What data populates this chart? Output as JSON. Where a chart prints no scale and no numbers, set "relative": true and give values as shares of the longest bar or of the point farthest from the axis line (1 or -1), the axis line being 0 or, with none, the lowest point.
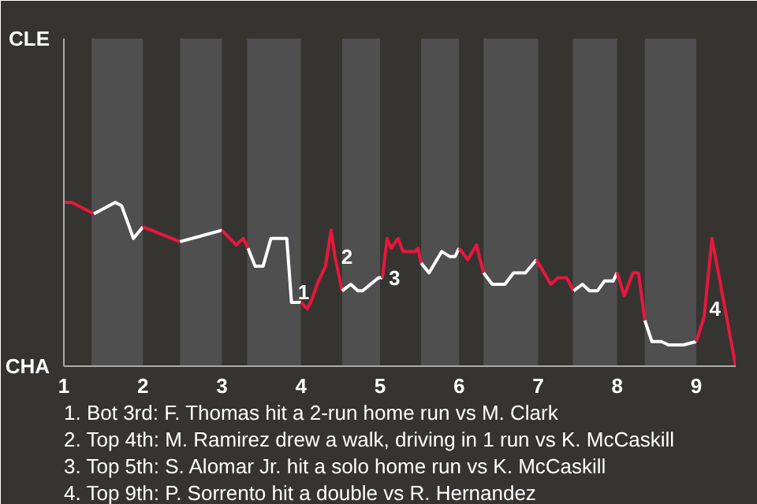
{
  "chart_data": {
    "type": "line",
    "relative": true,
    "xlim": [
      1,
      9.5
    ],
    "xticks": [
      1,
      2,
      3,
      4,
      5,
      6,
      7,
      8,
      9
    ],
    "marker": "none",
    "line_style": "solid",
    "series": [
      {
        "color": "#e8173c",
        "x": [
          1,
          1.1,
          1.38
        ],
        "values": [
          1,
          1,
          0.93
        ]
      },
      {
        "color": "#ffffff",
        "x": [
          1.38,
          1.65,
          1.73,
          1.88,
          2
        ],
        "values": [
          0.93,
          1,
          0.98,
          0.78,
          0.85
        ]
      },
      {
        "color": "#e8173c",
        "x": [
          2,
          2.47
        ],
        "values": [
          0.85,
          0.76
        ]
      },
      {
        "color": "#ffffff",
        "x": [
          2.47,
          3
        ],
        "values": [
          0.76,
          0.83
        ]
      },
      {
        "color": "#e8173c",
        "x": [
          3,
          3.18,
          3.27,
          3.33
        ],
        "values": [
          0.83,
          0.74,
          0.78,
          0.72
        ]
      },
      {
        "color": "#ffffff",
        "x": [
          3.33,
          3.42,
          3.52,
          3.62,
          3.68,
          3.82,
          3.88,
          4
        ],
        "values": [
          0.72,
          0.61,
          0.61,
          0.78,
          0.78,
          0.78,
          0.39,
          0.39
        ]
      },
      {
        "color": "#e8173c",
        "x": [
          4,
          4.08,
          4.14,
          4.22,
          4.31,
          4.38,
          4.43,
          4.52
        ],
        "values": [
          0.39,
          0.35,
          0.41,
          0.52,
          0.61,
          0.83,
          0.67,
          0.46
        ]
      },
      {
        "color": "#ffffff",
        "x": [
          4.52,
          4.63,
          4.72,
          4.78,
          4.88,
          4.98,
          5.03
        ],
        "values": [
          0.46,
          0.5,
          0.46,
          0.46,
          0.5,
          0.54,
          0.54
        ]
      },
      {
        "color": "#e8173c",
        "x": [
          5.03,
          5.09,
          5.14,
          5.23,
          5.29,
          5.45,
          5.48,
          5.52
        ],
        "values": [
          0.54,
          0.78,
          0.72,
          0.78,
          0.7,
          0.7,
          0.72,
          0.63
        ]
      },
      {
        "color": "#ffffff",
        "x": [
          5.52,
          5.62,
          5.78,
          5.88,
          5.95,
          6
        ],
        "values": [
          0.63,
          0.57,
          0.7,
          0.67,
          0.67,
          0.72
        ]
      },
      {
        "color": "#e8173c",
        "x": [
          6,
          6.11,
          6.22,
          6.31
        ],
        "values": [
          0.72,
          0.65,
          0.74,
          0.57
        ]
      },
      {
        "color": "#ffffff",
        "x": [
          6.31,
          6.42,
          6.58,
          6.69,
          6.84,
          6.98
        ],
        "values": [
          0.57,
          0.5,
          0.5,
          0.57,
          0.57,
          0.65
        ]
      },
      {
        "color": "#e8173c",
        "x": [
          6.98,
          7.16,
          7.25,
          7.36,
          7.45
        ],
        "values": [
          0.65,
          0.5,
          0.54,
          0.54,
          0.46
        ]
      },
      {
        "color": "#ffffff",
        "x": [
          7.45,
          7.56,
          7.65,
          7.75,
          7.84,
          7.95,
          8
        ],
        "values": [
          0.46,
          0.5,
          0.46,
          0.46,
          0.52,
          0.52,
          0.57
        ]
      },
      {
        "color": "#e8173c",
        "x": [
          8,
          8.09,
          8.2,
          8.27,
          8.35
        ],
        "values": [
          0.57,
          0.43,
          0.57,
          0.57,
          0.28
        ]
      },
      {
        "color": "#ffffff",
        "x": [
          8.35,
          8.44,
          8.56,
          8.65,
          8.84,
          9
        ],
        "values": [
          0.28,
          0.15,
          0.15,
          0.13,
          0.13,
          0.15
        ]
      },
      {
        "color": "#e8173c",
        "x": [
          9,
          9.1,
          9.2,
          9.5
        ],
        "values": [
          0.15,
          0.3,
          0.78,
          0
        ]
      }
    ],
    "bands": [
      {
        "axis": "x",
        "from": 1.35,
        "to": 2,
        "color": "#4f4f4f"
      },
      {
        "axis": "x",
        "from": 2.47,
        "to": 3,
        "color": "#4f4f4f"
      },
      {
        "axis": "x",
        "from": 3.32,
        "to": 4,
        "color": "#4f4f4f"
      },
      {
        "axis": "x",
        "from": 4.52,
        "to": 5,
        "color": "#4f4f4f"
      },
      {
        "axis": "x",
        "from": 5.52,
        "to": 6,
        "color": "#4f4f4f"
      },
      {
        "axis": "x",
        "from": 6.31,
        "to": 7,
        "color": "#4f4f4f"
      },
      {
        "axis": "x",
        "from": 7.44,
        "to": 8,
        "color": "#4f4f4f"
      },
      {
        "axis": "x",
        "from": 8.35,
        "to": 9,
        "color": "#4f4f4f"
      }
    ],
    "annotations": [
      "CLE",
      "CHA",
      {
        "text": "1",
        "x": 3.88,
        "y": 0.45
      },
      {
        "text": "2",
        "x": 4.43,
        "y": 0.67
      },
      {
        "text": "3",
        "x": 5.03,
        "y": 0.54
      },
      {
        "text": "4",
        "x": 9.37,
        "y": 0.35
      },
      "1. Bot 3rd: F. Thomas hit a 2-run home run vs M. Clark",
      "2. Top 4th: M. Ramirez drew a walk, driving in 1 run vs K. McCaskill",
      "3. Top 5th: S. Alomar Jr. hit a solo home run vs K. McCaskill",
      "4. Top 9th: P. Sorrento hit a double vs R. Hernandez"
    ]
  }
}
